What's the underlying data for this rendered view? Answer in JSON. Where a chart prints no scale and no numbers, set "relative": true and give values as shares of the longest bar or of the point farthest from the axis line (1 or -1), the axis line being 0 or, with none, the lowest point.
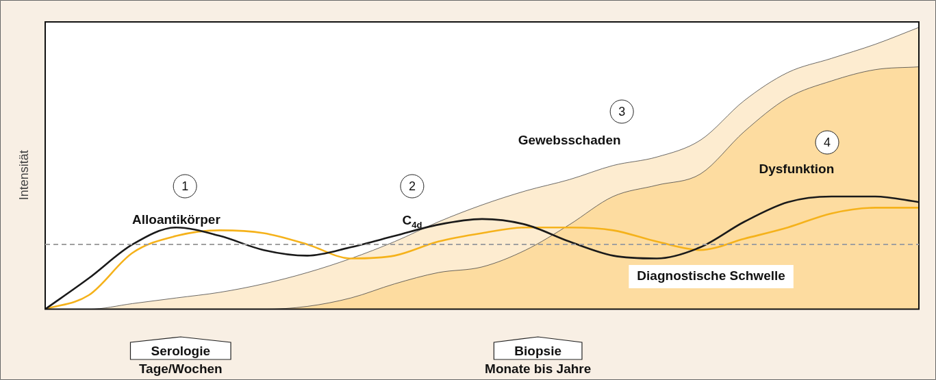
{
  "chart_data": {
    "type": "area",
    "relative": true,
    "ylabel": "Intensität",
    "categories": [
      null,
      null,
      null,
      null,
      null,
      null,
      null,
      null,
      null,
      null,
      null,
      null,
      null,
      null,
      null,
      null,
      null,
      null,
      null,
      null,
      null
    ],
    "series": [
      {
        "type": "area",
        "color": "#fdecd0",
        "values": [
          0,
          0,
          0.02,
          0.04,
          0.06,
          0.09,
          0.13,
          0.18,
          0.24,
          0.31,
          0.37,
          0.42,
          0.46,
          0.51,
          0.54,
          0.6,
          0.74,
          0.84,
          0.89,
          0.94,
          1
        ]
      },
      {
        "type": "area",
        "color": "#fddca0",
        "values": [
          0,
          0,
          0,
          0,
          0,
          0,
          0.01,
          0.04,
          0.09,
          0.13,
          0.15,
          0.21,
          0.3,
          0.4,
          0.44,
          0.48,
          0.63,
          0.75,
          0.81,
          0.85,
          0.86
        ]
      },
      {
        "type": "line",
        "color": "#f5b21b",
        "values": [
          0,
          0.05,
          0.2,
          0.26,
          0.28,
          0.27,
          0.23,
          0.18,
          0.19,
          0.24,
          0.27,
          0.29,
          0.29,
          0.28,
          0.24,
          0.21,
          0.25,
          0.29,
          0.34,
          0.36,
          0.36
        ]
      },
      {
        "type": "line",
        "color": "#1a1a1a",
        "values": [
          0,
          0.11,
          0.23,
          0.29,
          0.26,
          0.21,
          0.19,
          0.22,
          0.26,
          0.3,
          0.32,
          0.3,
          0.24,
          0.19,
          0.18,
          0.22,
          0.31,
          0.38,
          0.4,
          0.4,
          0.38
        ]
      }
    ],
    "ref_lines": [
      {
        "axis": "y",
        "value": 0.23,
        "label": "Diagnostische Schwelle",
        "color": "#a0a0a0",
        "line_style": "dashed"
      }
    ],
    "annotations": [
      "1",
      "Alloantikörper",
      "2",
      "C$_{4d}$",
      "3",
      "Gewebsschaden",
      "4",
      "Dysfunktion",
      "Serologie",
      "Biopsie",
      "Tage/Wochen",
      "Monate bis Jahre"
    ],
    "legend": false,
    "marker": "none",
    "line_style": "solid"
  }
}
